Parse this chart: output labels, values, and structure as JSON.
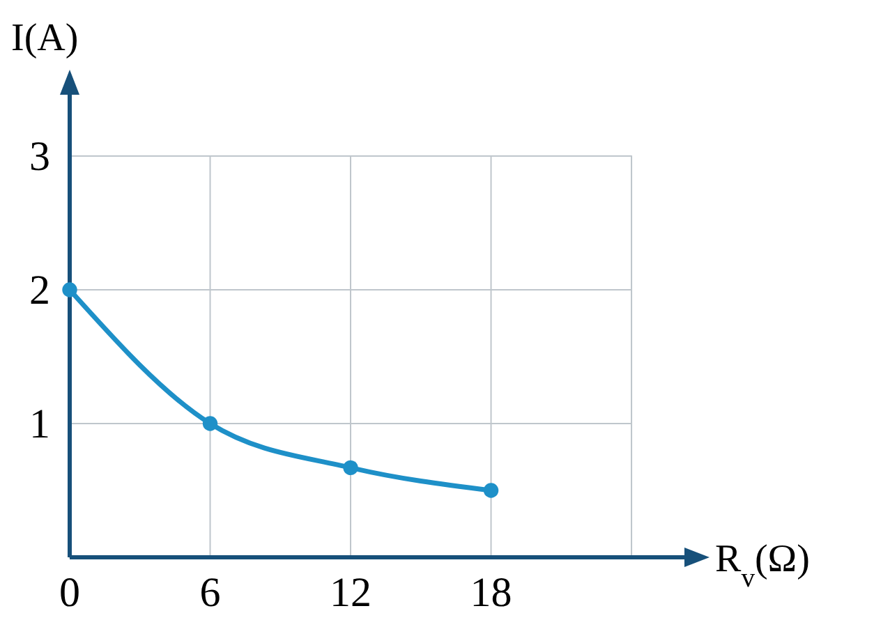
{
  "chart_data": {
    "type": "line",
    "xlabel": "R$_{v}$(Ω)",
    "ylabel": "I(A)",
    "x": [
      0,
      6,
      12,
      18
    ],
    "series": [
      {
        "color": "#1e90c8",
        "values": [
          2,
          1,
          0.67,
          0.5
        ]
      }
    ],
    "xlim": [
      0,
      26.5
    ],
    "xticks": [
      0,
      6,
      12,
      18,
      {
        "value": 24,
        "label": null
      }
    ],
    "ylim": [
      0,
      3.5
    ],
    "yticks": [
      1,
      2,
      3
    ],
    "grid": true,
    "marker": "circle"
  }
}
